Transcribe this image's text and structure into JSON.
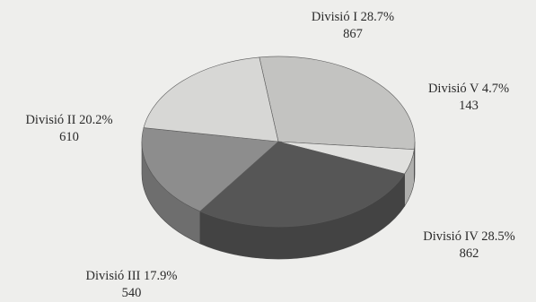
{
  "chart_data": {
    "type": "pie",
    "title": "",
    "slices": [
      {
        "name": "Divisió I",
        "percent": "28.7%",
        "value": 867,
        "color": "#c3c3c1"
      },
      {
        "name": "Divisió V",
        "percent": "4.7%",
        "value": 143,
        "color": "#e0e0de"
      },
      {
        "name": "Divisió IV",
        "percent": "28.5%",
        "value": 862,
        "color": "#565656"
      },
      {
        "name": "Divisió III",
        "percent": "17.9%",
        "value": 540,
        "color": "#8d8d8d"
      },
      {
        "name": "Divisió II",
        "percent": "20.2%",
        "value": 610,
        "color": "#d7d7d5"
      }
    ]
  }
}
